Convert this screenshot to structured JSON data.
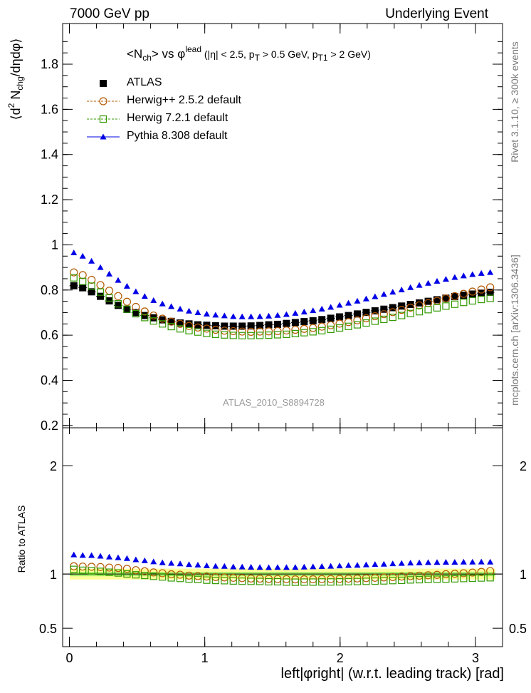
{
  "header": {
    "left": "7000 GeV pp",
    "right": "Underlying Event"
  },
  "title": {
    "prefix": "<N",
    "ch": "ch",
    "mid": "> vs φ",
    "lead": "lead",
    "cut1": " (|η| < 2.5, p",
    "t1": "T",
    "cut2": " > 0.5 GeV, p",
    "t2": "T1",
    "cut3": " > 2 GeV)"
  },
  "ylabel_top": {
    "a": "⟨d",
    "two": "2",
    "b": " N",
    "chg": "chg",
    "c": "/dηdφ⟩"
  },
  "ylabel_bottom": "Ratio to ATLAS",
  "xlabel": "left|φright| (w.r.t. leading track) [rad]",
  "side_right_top": "Rivet 3.1.10, ≥ 300k events",
  "side_right_bottom": "mcplots.cern.ch [arXiv:1306.3436]",
  "analysis_id": "ATLAS_2010_S8894728",
  "legend": [
    {
      "label": "ATLAS",
      "color": "#000000",
      "marker": "square-filled"
    },
    {
      "label": "Herwig++ 2.5.2 default",
      "color": "#b35900",
      "marker": "circle-open"
    },
    {
      "label": "Herwig 7.2.1 default",
      "color": "#339900",
      "marker": "square-open"
    },
    {
      "label": "Pythia 8.308 default",
      "color": "#0000e6",
      "marker": "triangle-filled"
    }
  ],
  "chart_data": [
    {
      "type": "scatter",
      "panel": "main",
      "title": "<Nch> vs φlead (|η| < 2.5, pT > 0.5 GeV, pT1 > 2 GeV)",
      "xlabel": "left|φright| (w.r.t. leading track) [rad]",
      "ylabel": "⟨d2 Nchg/dηdφ⟩",
      "xlim": [
        -0.05,
        3.2
      ],
      "ylim": [
        0.19,
        1.98
      ],
      "x_ticks": [
        0,
        1,
        2,
        3
      ],
      "y_ticks": [
        0.2,
        0.4,
        0.6,
        0.8,
        1,
        1.2,
        1.4,
        1.6,
        1.8
      ],
      "x": [
        0.0327,
        0.0982,
        0.1636,
        0.2291,
        0.2945,
        0.36,
        0.4254,
        0.4909,
        0.5563,
        0.6218,
        0.6872,
        0.7527,
        0.8181,
        0.8836,
        0.949,
        1.0145,
        1.0799,
        1.1454,
        1.2108,
        1.2763,
        1.3417,
        1.4072,
        1.4726,
        1.5381,
        1.6035,
        1.669,
        1.7344,
        1.7999,
        1.8653,
        1.9308,
        1.9962,
        2.0617,
        2.1271,
        2.1926,
        2.258,
        2.3235,
        2.3889,
        2.4544,
        2.5198,
        2.5853,
        2.6507,
        2.7162,
        2.7816,
        2.8471,
        2.9125,
        2.978,
        3.0434,
        3.1089
      ],
      "series": [
        {
          "name": "ATLAS",
          "color": "#000000",
          "values": [
            0.819,
            0.81,
            0.792,
            0.772,
            0.752,
            0.732,
            0.714,
            0.7,
            0.687,
            0.677,
            0.668,
            0.661,
            0.654,
            0.65,
            0.646,
            0.644,
            0.642,
            0.64,
            0.64,
            0.64,
            0.641,
            0.643,
            0.646,
            0.648,
            0.652,
            0.656,
            0.66,
            0.664,
            0.669,
            0.675,
            0.681,
            0.687,
            0.694,
            0.701,
            0.708,
            0.715,
            0.722,
            0.729,
            0.736,
            0.743,
            0.75,
            0.757,
            0.764,
            0.771,
            0.777,
            0.782,
            0.786,
            0.79
          ]
        },
        {
          "name": "Herwig++ 2.5.2 default",
          "color": "#b35900",
          "values": [
            0.878,
            0.866,
            0.845,
            0.822,
            0.797,
            0.773,
            0.748,
            0.725,
            0.705,
            0.687,
            0.673,
            0.66,
            0.65,
            0.641,
            0.634,
            0.629,
            0.624,
            0.62,
            0.618,
            0.616,
            0.615,
            0.616,
            0.617,
            0.618,
            0.621,
            0.624,
            0.628,
            0.632,
            0.638,
            0.644,
            0.651,
            0.658,
            0.666,
            0.675,
            0.684,
            0.693,
            0.702,
            0.712,
            0.722,
            0.732,
            0.742,
            0.752,
            0.763,
            0.773,
            0.783,
            0.793,
            0.802,
            0.812
          ]
        },
        {
          "name": "Herwig 7.2.1 default",
          "color": "#339900",
          "values": [
            0.854,
            0.838,
            0.817,
            0.791,
            0.765,
            0.739,
            0.715,
            0.695,
            0.678,
            0.663,
            0.65,
            0.638,
            0.628,
            0.62,
            0.614,
            0.608,
            0.604,
            0.601,
            0.599,
            0.598,
            0.598,
            0.599,
            0.6,
            0.602,
            0.604,
            0.607,
            0.611,
            0.615,
            0.62,
            0.626,
            0.632,
            0.639,
            0.646,
            0.654,
            0.662,
            0.67,
            0.679,
            0.687,
            0.696,
            0.704,
            0.713,
            0.721,
            0.729,
            0.737,
            0.745,
            0.752,
            0.758,
            0.763
          ]
        },
        {
          "name": "Pythia 8.308 default",
          "color": "#0000e6",
          "values": [
            0.965,
            0.95,
            0.928,
            0.9,
            0.871,
            0.843,
            0.817,
            0.793,
            0.772,
            0.754,
            0.739,
            0.727,
            0.716,
            0.707,
            0.7,
            0.694,
            0.689,
            0.686,
            0.683,
            0.682,
            0.682,
            0.683,
            0.685,
            0.688,
            0.692,
            0.697,
            0.703,
            0.709,
            0.716,
            0.724,
            0.733,
            0.742,
            0.751,
            0.761,
            0.771,
            0.781,
            0.791,
            0.801,
            0.811,
            0.821,
            0.83,
            0.839,
            0.848,
            0.856,
            0.863,
            0.869,
            0.874,
            0.878
          ]
        }
      ]
    },
    {
      "type": "scatter",
      "panel": "ratio",
      "ylabel": "Ratio to ATLAS",
      "xlabel": "left|φright| (w.r.t. leading track) [rad]",
      "xlim": [
        -0.05,
        3.2
      ],
      "ylim": [
        0.33,
        2.35
      ],
      "y_ticks": [
        0.5,
        1,
        2
      ],
      "band": {
        "ylow_inner": 0.98,
        "yhigh_inner": 1.02,
        "ylow_outer": 0.95,
        "yhigh_outer": 1.05,
        "inner_color": "#a9ef6a",
        "outer_color": "#ffff99"
      },
      "series": [
        {
          "name": "Herwig++ 2.5.2 default",
          "color": "#b35900",
          "values": [
            1.072,
            1.069,
            1.067,
            1.065,
            1.06,
            1.056,
            1.048,
            1.036,
            1.026,
            1.015,
            1.008,
            0.998,
            0.994,
            0.986,
            0.981,
            0.977,
            0.972,
            0.969,
            0.966,
            0.963,
            0.959,
            0.958,
            0.955,
            0.954,
            0.953,
            0.951,
            0.952,
            0.952,
            0.954,
            0.954,
            0.956,
            0.958,
            0.96,
            0.963,
            0.966,
            0.969,
            0.972,
            0.977,
            0.981,
            0.985,
            0.989,
            0.993,
            0.999,
            1.003,
            1.008,
            1.014,
            1.02,
            1.028
          ]
        },
        {
          "name": "Herwig 7.2.1 default",
          "color": "#339900",
          "values": [
            1.043,
            1.035,
            1.032,
            1.025,
            1.017,
            1.01,
            1.001,
            0.993,
            0.987,
            0.979,
            0.973,
            0.965,
            0.96,
            0.954,
            0.95,
            0.944,
            0.941,
            0.939,
            0.936,
            0.934,
            0.933,
            0.932,
            0.929,
            0.929,
            0.926,
            0.925,
            0.926,
            0.926,
            0.927,
            0.927,
            0.928,
            0.93,
            0.931,
            0.933,
            0.935,
            0.937,
            0.94,
            0.942,
            0.946,
            0.948,
            0.951,
            0.952,
            0.954,
            0.956,
            0.959,
            0.962,
            0.964,
            0.966
          ]
        },
        {
          "name": "Pythia 8.308 default",
          "color": "#0000e6",
          "values": [
            1.178,
            1.173,
            1.172,
            1.166,
            1.158,
            1.152,
            1.144,
            1.133,
            1.124,
            1.114,
            1.106,
            1.1,
            1.095,
            1.088,
            1.084,
            1.078,
            1.073,
            1.072,
            1.067,
            1.066,
            1.064,
            1.062,
            1.06,
            1.062,
            1.061,
            1.062,
            1.065,
            1.068,
            1.07,
            1.073,
            1.076,
            1.08,
            1.082,
            1.086,
            1.089,
            1.092,
            1.096,
            1.099,
            1.102,
            1.105,
            1.107,
            1.108,
            1.11,
            1.11,
            1.111,
            1.111,
            1.112,
            1.111
          ]
        }
      ]
    }
  ]
}
